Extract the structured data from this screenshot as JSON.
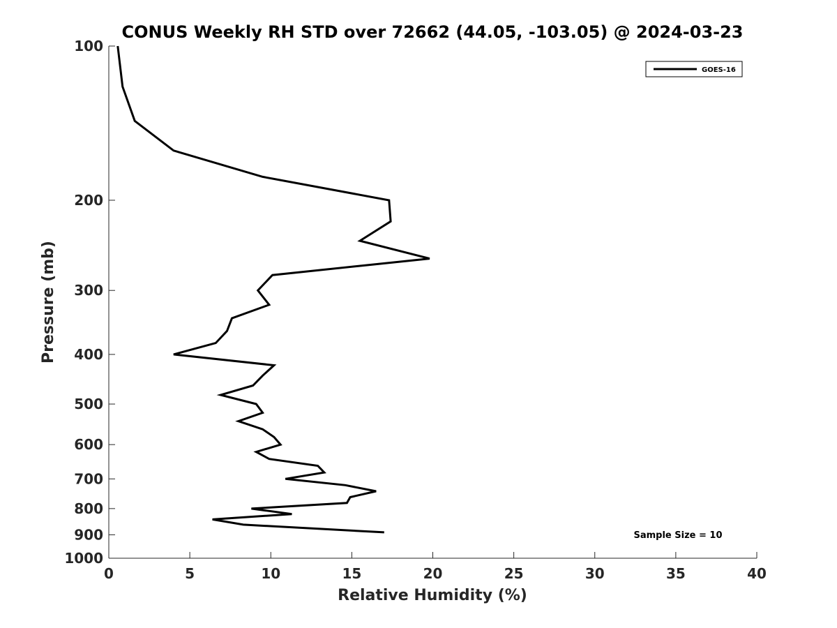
{
  "chart_data": {
    "type": "line",
    "title": "CONUS Weekly RH STD over 72662 (44.05, -103.05) @ 2024-03-23",
    "xlabel": "Relative Humidity (%)",
    "ylabel": "Pressure (mb)",
    "xlim": [
      0,
      40
    ],
    "ylim": [
      100,
      1000
    ],
    "y_scale": "log",
    "y_direction": "reversed",
    "x_ticks": [
      0,
      5,
      10,
      15,
      20,
      25,
      30,
      35,
      40
    ],
    "y_ticks": [
      100,
      200,
      300,
      400,
      500,
      600,
      700,
      800,
      900,
      1000
    ],
    "grid": false,
    "legend_position": "top-right",
    "color": "#000000",
    "series": [
      {
        "name": "GOES-16",
        "x": [
          0.55,
          0.85,
          1.6,
          4.0,
          9.5,
          17.3,
          17.4,
          15.5,
          19.8,
          10.1,
          9.2,
          9.9,
          7.6,
          7.3,
          6.6,
          4.0,
          10.2,
          9.5,
          8.9,
          6.9,
          9.1,
          9.5,
          8.0,
          9.5,
          10.2,
          10.6,
          9.1,
          9.9,
          12.9,
          13.3,
          10.9,
          14.6,
          16.5,
          14.9,
          14.7,
          8.8,
          11.3,
          6.4,
          8.3,
          17.0
        ],
        "y": [
          100,
          120,
          140,
          160,
          180,
          200,
          220,
          240,
          260,
          280,
          300,
          320,
          340,
          360,
          380,
          400,
          420,
          440,
          460,
          480,
          500,
          520,
          540,
          560,
          580,
          600,
          620,
          640,
          660,
          680,
          700,
          720,
          740,
          760,
          780,
          800,
          820,
          840,
          860,
          890
        ]
      }
    ],
    "annotation": "Sample Size = 10"
  }
}
